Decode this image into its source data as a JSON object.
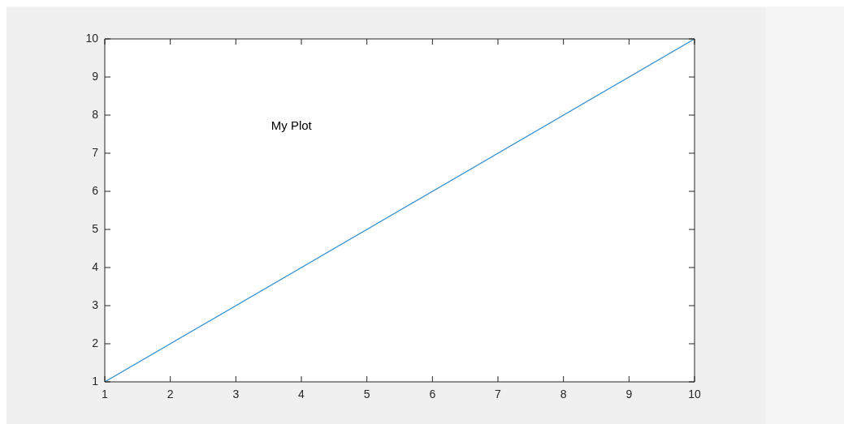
{
  "chart_data": {
    "type": "line",
    "x": [
      1,
      10
    ],
    "series": [
      {
        "color": "#3a93d3",
        "values": [
          1,
          10
        ]
      }
    ],
    "xlim": [
      1,
      10
    ],
    "xticks": [
      1,
      2,
      3,
      4,
      5,
      6,
      7,
      8,
      9,
      10
    ],
    "ylim": [
      1,
      10
    ],
    "yticks": [
      1,
      2,
      3,
      4,
      5,
      6,
      7,
      8,
      9,
      10
    ],
    "annotations": [
      "My Plot"
    ],
    "grid": false,
    "legend": false,
    "marker": "none",
    "line_style": "solid"
  }
}
